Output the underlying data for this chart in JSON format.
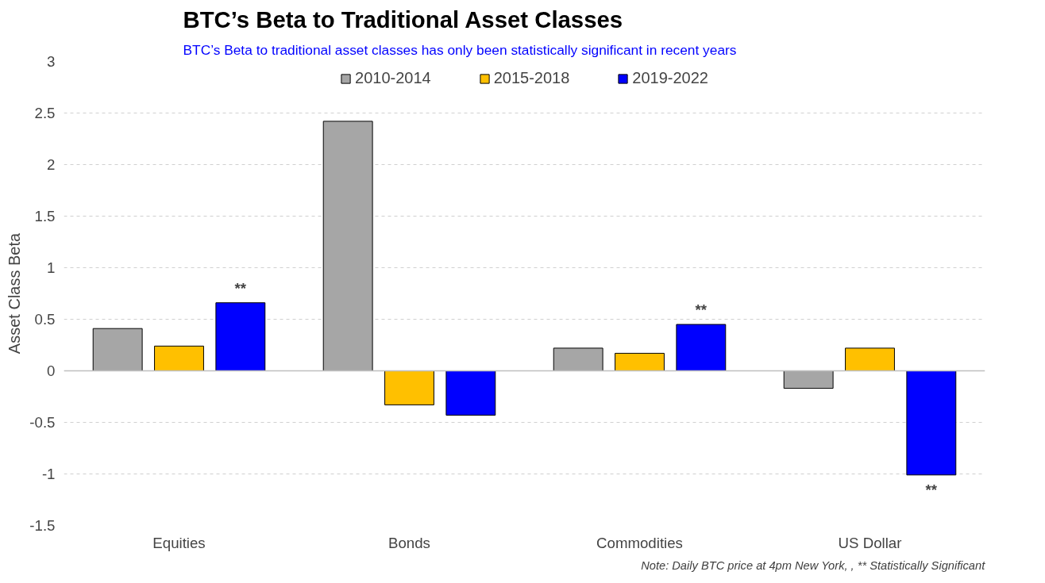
{
  "chart_data": {
    "type": "bar",
    "title": "BTC’s Beta to Traditional Asset Classes",
    "subtitle": "BTC’s Beta to traditional asset classes has only been statistically significant in recent years",
    "ylabel": "Asset Class Beta",
    "categories": [
      "Equities",
      "Bonds",
      "Commodities",
      "US Dollar"
    ],
    "series": [
      {
        "name": "2010-2014",
        "color": "#a6a6a6",
        "values": [
          0.41,
          2.42,
          0.22,
          -0.17
        ]
      },
      {
        "name": "2015-2018",
        "color": "#ffc000",
        "values": [
          0.24,
          -0.33,
          0.17,
          0.22
        ]
      },
      {
        "name": "2019-2022",
        "color": "#0000ff",
        "values": [
          0.66,
          -0.43,
          0.45,
          -1.01
        ]
      }
    ],
    "ylim": [
      -1.5,
      3
    ],
    "yticks": [
      -1.5,
      -1,
      -0.5,
      0,
      0.5,
      1,
      1.5,
      2,
      2.5,
      3
    ],
    "grid": "y",
    "legend": "top",
    "annotations": [
      "**",
      "**",
      "**",
      "Note: Daily BTC price at 4pm New York, , ** Statistically Significant"
    ]
  }
}
